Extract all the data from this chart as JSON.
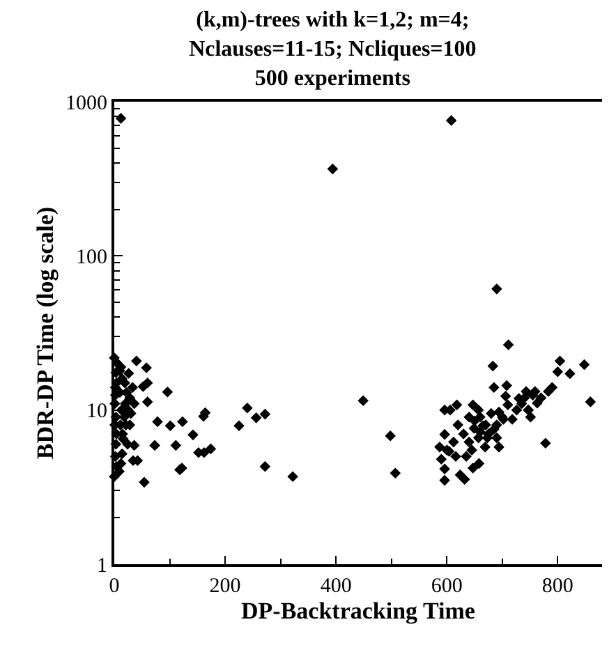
{
  "chart_data": {
    "type": "scatter",
    "title": "(k,m)-trees with k=1,2; m=4;\nNclauses=11-15; Ncliques=100\n500 experiments",
    "xlabel": "DP-Backtracking Time",
    "ylabel": "BDR-DP Time (log scale)",
    "log": "y",
    "marker": "diamond",
    "xlim": [
      0,
      880
    ],
    "xticks": [
      0,
      200,
      400,
      600,
      800
    ],
    "ylim": [
      1,
      1000
    ],
    "yticks": [
      1,
      10,
      100,
      1000
    ],
    "series": [
      {
        "color": "#000000",
        "x": [
          12,
          608,
          394,
          690,
          711,
          683,
          449,
          498,
          507,
          596,
          606,
          618,
          596,
          596,
          596,
          587,
          590,
          604,
          616,
          624,
          632,
          647,
          658,
          647,
          657,
          649,
          665,
          657,
          673,
          669,
          685,
          708,
          694,
          710,
          690,
          694,
          706,
          718,
          726,
          730,
          743,
          747,
          702,
          640,
          804,
          848,
          800,
          822,
          859,
          778,
          783,
          759,
          763,
          747,
          751,
          620,
          630,
          640,
          650,
          660,
          670,
          680,
          690,
          700,
          735,
          740,
          755,
          770,
          790,
          600,
          612,
          635,
          645,
          660,
          675,
          685,
          40,
          58,
          60,
          52,
          96,
          60,
          26,
          78,
          101,
          123,
          164,
          161,
          142,
          73,
          111,
          152,
          162,
          174,
          118,
          122,
          54,
          34,
          42,
          36,
          28,
          240,
          225,
          256,
          272,
          272,
          322,
          0,
          0,
          2,
          3,
          4,
          10,
          2,
          4,
          10,
          12,
          3,
          15,
          18,
          20,
          22,
          25,
          14,
          16,
          12,
          9,
          4,
          1,
          1,
          2,
          11,
          13,
          19,
          21,
          24,
          28,
          30,
          33,
          36,
          6,
          14,
          3
        ],
        "values": [
          780,
          755,
          366,
          61,
          26.5,
          19.3,
          11.5,
          6.8,
          3.9,
          10,
          10,
          10.8,
          6.95,
          3.5,
          4.15,
          5.75,
          4.8,
          5.4,
          5.0,
          3.8,
          3.55,
          4.2,
          4.5,
          10.8,
          10,
          7.6,
          7.9,
          6.6,
          6.6,
          5.75,
          14,
          14.4,
          9.7,
          10.8,
          6.6,
          5.75,
          12.3,
          8.7,
          10,
          11.9,
          13.2,
          10,
          8.7,
          6.2,
          20.8,
          19.7,
          17.7,
          17.2,
          11.3,
          6.1,
          13.2,
          13.2,
          11.1,
          10,
          9.0,
          8,
          7,
          9,
          8.5,
          9,
          8,
          9.5,
          8,
          9,
          11,
          12,
          12.5,
          12,
          14,
          5.5,
          6.2,
          5,
          5.5,
          7.2,
          7,
          7.5,
          20.8,
          18.8,
          15,
          14.2,
          13.1,
          11.3,
          17.3,
          8.4,
          7.9,
          8.4,
          9.6,
          9.1,
          6.9,
          5.9,
          5.9,
          5.3,
          5.3,
          5.6,
          4.1,
          4.2,
          3.4,
          4.7,
          4.7,
          5.9,
          8.0,
          10.3,
          7.9,
          8.9,
          9.4,
          4.3,
          3.7,
          21.8,
          3.7,
          5,
          6,
          7,
          13,
          14,
          15,
          18,
          19,
          9,
          7,
          9,
          11,
          13,
          10,
          5.2,
          6.5,
          4.5,
          4,
          4.3,
          11,
          8,
          12.5,
          8,
          10,
          15,
          8,
          6,
          12,
          9.5,
          14,
          11,
          20,
          16,
          17.5
        ]
      }
    ]
  }
}
